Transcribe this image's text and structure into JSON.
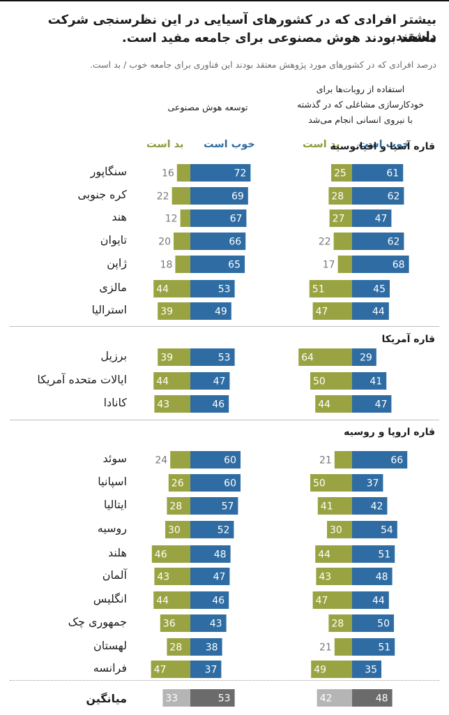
{
  "title_lines": [
    "بیشتر افرادی که در کشورهای آسیایی در این نظرسنجی شرکت داشتند،",
    "معتقد بودند هوش مصنوعی برای جامعه مفید است."
  ],
  "subtitle": "درصد افرادی که در کشورهای مورد پژوهش معتقد بودند این فناوری برای جامعه خوب / بد است.",
  "columns": {
    "ai": "توسعه هوش مصنوعی",
    "robots": [
      "استفاده از روبات‌ها برای",
      "خودکارسازی مشاغلی که در گذشته",
      "با نیروی انسانی انجام می‌شد"
    ]
  },
  "legend": {
    "good": "خوب است",
    "bad": "بد است"
  },
  "colors": {
    "good": "#2e6ca3",
    "bad": "#9aa342",
    "avg_good": "#6b6b6b",
    "avg_bad": "#b5b5b5"
  },
  "sections": [
    "قاره آسیا و اقیانوسیه",
    "قاره آمریکا",
    "قاره اروپا و روسیه"
  ],
  "average_label": "میانگین",
  "chart_data": {
    "type": "bar",
    "title": "بیشتر افرادی که در کشورهای آسیایی در این نظرسنجی شرکت داشتند، معتقد بودند هوش مصنوعی برای جامعه مفید است.",
    "categories": [
      "سنگاپور",
      "کره جنوبی",
      "هند",
      "تایوان",
      "ژاپن",
      "مالزی",
      "استرالیا",
      "برزیل",
      "ایالات متحده آمریکا",
      "کانادا",
      "سوئد",
      "اسپانیا",
      "ایتالیا",
      "روسیه",
      "هلند",
      "آلمان",
      "انگلیس",
      "جمهوری چک",
      "لهستان",
      "فرانسه"
    ],
    "category_sections": [
      0,
      0,
      0,
      0,
      0,
      0,
      0,
      1,
      1,
      1,
      2,
      2,
      2,
      2,
      2,
      2,
      2,
      2,
      2,
      2
    ],
    "series": [
      {
        "name": "توسعه هوش مصنوعی — خوب است",
        "values": [
          72,
          69,
          67,
          66,
          65,
          53,
          49,
          53,
          47,
          46,
          60,
          60,
          57,
          52,
          48,
          47,
          46,
          43,
          38,
          37
        ]
      },
      {
        "name": "توسعه هوش مصنوعی — بد است",
        "values": [
          16,
          22,
          12,
          20,
          18,
          44,
          39,
          39,
          44,
          43,
          24,
          26,
          28,
          30,
          46,
          43,
          44,
          36,
          28,
          47
        ]
      },
      {
        "name": "استفاده از روبات‌ها — خوب است",
        "values": [
          61,
          62,
          47,
          62,
          68,
          45,
          44,
          29,
          41,
          47,
          66,
          37,
          42,
          54,
          51,
          48,
          44,
          50,
          51,
          35
        ]
      },
      {
        "name": "استفاده از روبات‌ها — بد است",
        "values": [
          25,
          28,
          27,
          22,
          17,
          51,
          47,
          64,
          50,
          44,
          21,
          50,
          41,
          30,
          44,
          43,
          47,
          28,
          21,
          49
        ]
      }
    ],
    "averages": {
      "ai_good": 53,
      "ai_bad": 33,
      "robots_good": 48,
      "robots_bad": 42
    },
    "unit": "%"
  }
}
